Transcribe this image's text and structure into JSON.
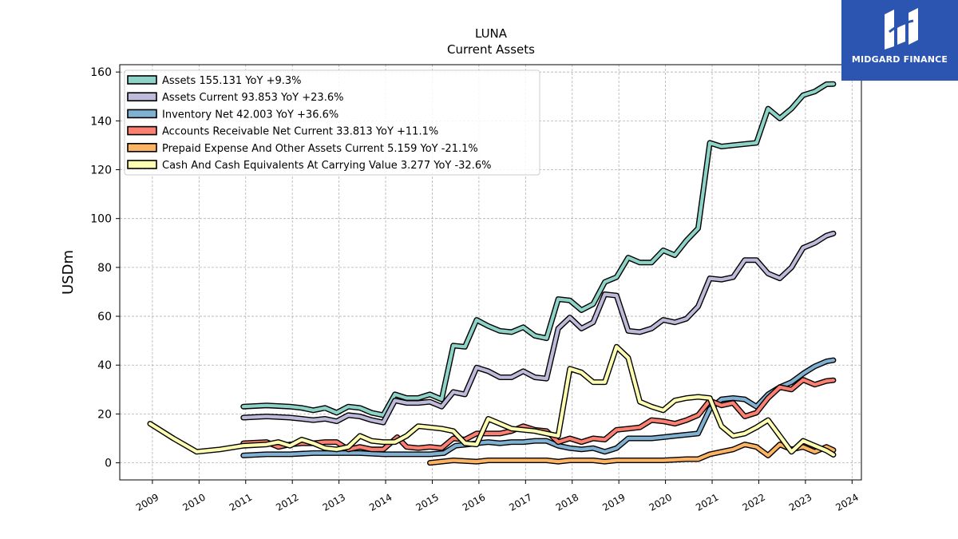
{
  "brand": {
    "name": "MIDGARD FINANCE",
    "bg_color": "#2b55b0"
  },
  "chart_data": {
    "type": "line",
    "title": "LUNA",
    "subtitle": "Current  Assets",
    "xlabel": "",
    "ylabel": "USDm",
    "xlim": [
      2008.3,
      2024.2
    ],
    "ylim": [
      -7,
      163
    ],
    "x_ticks": [
      "2009",
      "2010",
      "2011",
      "2012",
      "2013",
      "2014",
      "2015",
      "2016",
      "2017",
      "2018",
      "2019",
      "2020",
      "2021",
      "2022",
      "2023",
      "2024"
    ],
    "y_ticks": [
      0,
      20,
      40,
      60,
      80,
      100,
      120,
      140,
      160
    ],
    "grid": true,
    "legend_position": "top-left",
    "series": [
      {
        "name": "Assets",
        "legend": "Assets  155.131 YoY +9.3%",
        "color": "#8dd3c7",
        "x": [
          2010.95,
          2011.45,
          2011.95,
          2012.2,
          2012.45,
          2012.7,
          2012.95,
          2013.2,
          2013.45,
          2013.7,
          2013.95,
          2014.2,
          2014.45,
          2014.7,
          2014.95,
          2015.2,
          2015.45,
          2015.7,
          2015.95,
          2016.2,
          2016.45,
          2016.7,
          2016.95,
          2017.2,
          2017.45,
          2017.7,
          2017.95,
          2018.2,
          2018.45,
          2018.7,
          2018.95,
          2019.2,
          2019.45,
          2019.7,
          2019.95,
          2020.2,
          2020.45,
          2020.7,
          2020.95,
          2021.2,
          2021.45,
          2021.7,
          2021.95,
          2022.2,
          2022.45,
          2022.7,
          2022.95,
          2023.2,
          2023.45,
          2023.6
        ],
        "y": [
          23,
          23.5,
          23,
          22.5,
          21.5,
          22.5,
          20.5,
          23,
          22.5,
          20.5,
          19.5,
          28,
          26.5,
          26.5,
          28,
          26,
          48,
          47.5,
          58.5,
          56,
          54,
          53.5,
          55.5,
          52,
          51,
          67,
          66.5,
          62.5,
          65,
          74,
          76,
          84,
          82,
          82,
          87,
          85,
          91,
          96,
          131,
          129.5,
          130,
          130.5,
          131,
          145,
          141,
          145,
          150.5,
          152,
          155,
          155.1
        ]
      },
      {
        "name": "Assets Current",
        "legend": "Assets Current  93.853 YoY +23.6%",
        "color": "#bebada",
        "x": [
          2010.95,
          2011.45,
          2011.95,
          2012.2,
          2012.45,
          2012.7,
          2012.95,
          2013.2,
          2013.45,
          2013.7,
          2013.95,
          2014.2,
          2014.45,
          2014.7,
          2014.95,
          2015.2,
          2015.45,
          2015.7,
          2015.95,
          2016.2,
          2016.45,
          2016.7,
          2016.95,
          2017.2,
          2017.45,
          2017.7,
          2017.95,
          2018.2,
          2018.45,
          2018.7,
          2018.95,
          2019.2,
          2019.45,
          2019.7,
          2019.95,
          2020.2,
          2020.45,
          2020.7,
          2020.95,
          2021.2,
          2021.45,
          2021.7,
          2021.95,
          2022.2,
          2022.45,
          2022.7,
          2022.95,
          2023.2,
          2023.45,
          2023.6
        ],
        "y": [
          18.5,
          19,
          18.5,
          18,
          17.5,
          18,
          17,
          19.5,
          19,
          17.5,
          16.5,
          25.5,
          24.5,
          24.5,
          25,
          23,
          29,
          28,
          39,
          37.5,
          35,
          35,
          37.5,
          35,
          34.5,
          55,
          59.5,
          55,
          57.5,
          69,
          68.5,
          54,
          53.5,
          55,
          58.5,
          57.5,
          59,
          64,
          75.5,
          75,
          76,
          83,
          83,
          77.5,
          75.5,
          80,
          88,
          90,
          93,
          93.9
        ]
      },
      {
        "name": "Inventory Net",
        "legend": "Inventory Net  42.003 YoY +36.6%",
        "color": "#80b1d3",
        "x": [
          2010.95,
          2011.45,
          2011.95,
          2012.45,
          2012.95,
          2013.45,
          2013.95,
          2014.45,
          2014.95,
          2015.25,
          2015.5,
          2015.75,
          2015.95,
          2016.2,
          2016.45,
          2016.7,
          2016.95,
          2017.2,
          2017.45,
          2017.7,
          2017.95,
          2018.2,
          2018.45,
          2018.7,
          2018.95,
          2019.2,
          2019.45,
          2019.7,
          2019.95,
          2020.2,
          2020.45,
          2020.7,
          2020.95,
          2021.2,
          2021.45,
          2021.7,
          2021.95,
          2022.2,
          2022.45,
          2022.7,
          2022.95,
          2023.2,
          2023.45,
          2023.6
        ],
        "y": [
          3,
          3.5,
          3.5,
          4,
          4,
          4,
          3.5,
          3.5,
          3.5,
          4,
          7,
          7.5,
          8,
          8.5,
          8,
          8.5,
          8.5,
          9,
          9,
          7,
          6,
          5.5,
          6,
          4.5,
          6,
          10,
          10,
          10,
          10.5,
          11,
          11.5,
          12,
          22,
          26,
          26.5,
          26,
          23,
          28,
          31,
          33,
          36.5,
          39.5,
          41.5,
          42
        ]
      },
      {
        "name": "Accounts Receivable Net Current",
        "legend": "Accounts Receivable Net Current  33.813 YoY +11.1%",
        "color": "#fb8072",
        "x": [
          2010.95,
          2011.45,
          2011.7,
          2011.95,
          2012.2,
          2012.45,
          2012.7,
          2012.95,
          2013.2,
          2013.45,
          2013.7,
          2013.95,
          2014.25,
          2014.45,
          2014.7,
          2014.95,
          2015.2,
          2015.45,
          2015.7,
          2015.95,
          2016.2,
          2016.45,
          2016.7,
          2016.95,
          2017.2,
          2017.45,
          2017.7,
          2017.95,
          2018.2,
          2018.45,
          2018.7,
          2018.95,
          2019.2,
          2019.45,
          2019.7,
          2019.95,
          2020.2,
          2020.45,
          2020.7,
          2020.95,
          2021.2,
          2021.45,
          2021.7,
          2021.95,
          2022.2,
          2022.45,
          2022.7,
          2022.95,
          2023.2,
          2023.45,
          2023.6
        ],
        "y": [
          8,
          8.5,
          6.5,
          7.5,
          8,
          8,
          8.5,
          8.5,
          5.5,
          6.5,
          5.5,
          5.5,
          10.5,
          6.5,
          6,
          6.5,
          6,
          10,
          9.5,
          12,
          12,
          12,
          13,
          15,
          13.5,
          13,
          8.5,
          10,
          8.5,
          10,
          9.5,
          13.5,
          14,
          14.5,
          17.5,
          17,
          16,
          17.5,
          19.5,
          25.5,
          23.5,
          24.5,
          19,
          20.5,
          26.5,
          31,
          30,
          34,
          32,
          33.5,
          33.8
        ]
      },
      {
        "name": "Prepaid Expense And Other Assets Current",
        "legend": "Prepaid Expense And Other Assets Current  5.159 YoY -21.1%",
        "color": "#fdb462",
        "x": [
          2014.95,
          2015.45,
          2015.95,
          2016.2,
          2016.7,
          2016.95,
          2017.45,
          2017.7,
          2017.95,
          2018.2,
          2018.45,
          2018.7,
          2018.95,
          2019.45,
          2019.95,
          2020.45,
          2020.7,
          2020.95,
          2021.2,
          2021.45,
          2021.7,
          2021.95,
          2022.2,
          2022.45,
          2022.7,
          2022.95,
          2023.2,
          2023.45,
          2023.6
        ],
        "y": [
          0,
          1,
          0.5,
          1,
          1,
          1,
          1,
          0.5,
          1,
          1,
          1,
          0.5,
          1,
          1,
          1,
          1.5,
          1.5,
          3.5,
          4.5,
          5.5,
          7.5,
          6.5,
          3,
          7.5,
          5.5,
          6.5,
          4.5,
          6.5,
          5.2
        ]
      },
      {
        "name": "Cash And Cash Equivalents At Carrying Value",
        "legend": "Cash And Cash Equivalents At Carrying Value  3.277 YoY -32.6%",
        "color": "#ffffb3",
        "x": [
          2008.95,
          2009.45,
          2009.95,
          2010.45,
          2010.95,
          2011.45,
          2011.7,
          2011.95,
          2012.2,
          2012.45,
          2012.7,
          2012.95,
          2013.2,
          2013.45,
          2013.7,
          2013.95,
          2014.2,
          2014.45,
          2014.7,
          2014.95,
          2015.2,
          2015.45,
          2015.7,
          2015.95,
          2016.2,
          2016.45,
          2016.7,
          2016.95,
          2017.2,
          2017.45,
          2017.7,
          2017.95,
          2018.2,
          2018.45,
          2018.7,
          2018.95,
          2019.2,
          2019.45,
          2019.7,
          2019.95,
          2020.2,
          2020.45,
          2020.7,
          2020.95,
          2021.2,
          2021.45,
          2021.7,
          2021.95,
          2022.2,
          2022.45,
          2022.7,
          2022.95,
          2023.2,
          2023.45,
          2023.6
        ],
        "y": [
          16,
          10,
          4.5,
          5.5,
          7,
          7.5,
          8.5,
          7,
          9.5,
          8,
          6,
          5.5,
          6.5,
          11,
          9,
          8.5,
          8.5,
          11,
          15,
          14.5,
          14,
          13,
          8,
          7.5,
          18,
          16,
          14,
          13.5,
          13,
          12,
          11,
          38.5,
          37,
          33,
          33,
          47.5,
          43,
          25,
          23,
          21.5,
          25.5,
          26.5,
          27,
          26.5,
          15,
          11,
          12,
          14.5,
          17.5,
          11,
          4.5,
          9,
          7,
          5,
          3.3
        ]
      }
    ]
  }
}
